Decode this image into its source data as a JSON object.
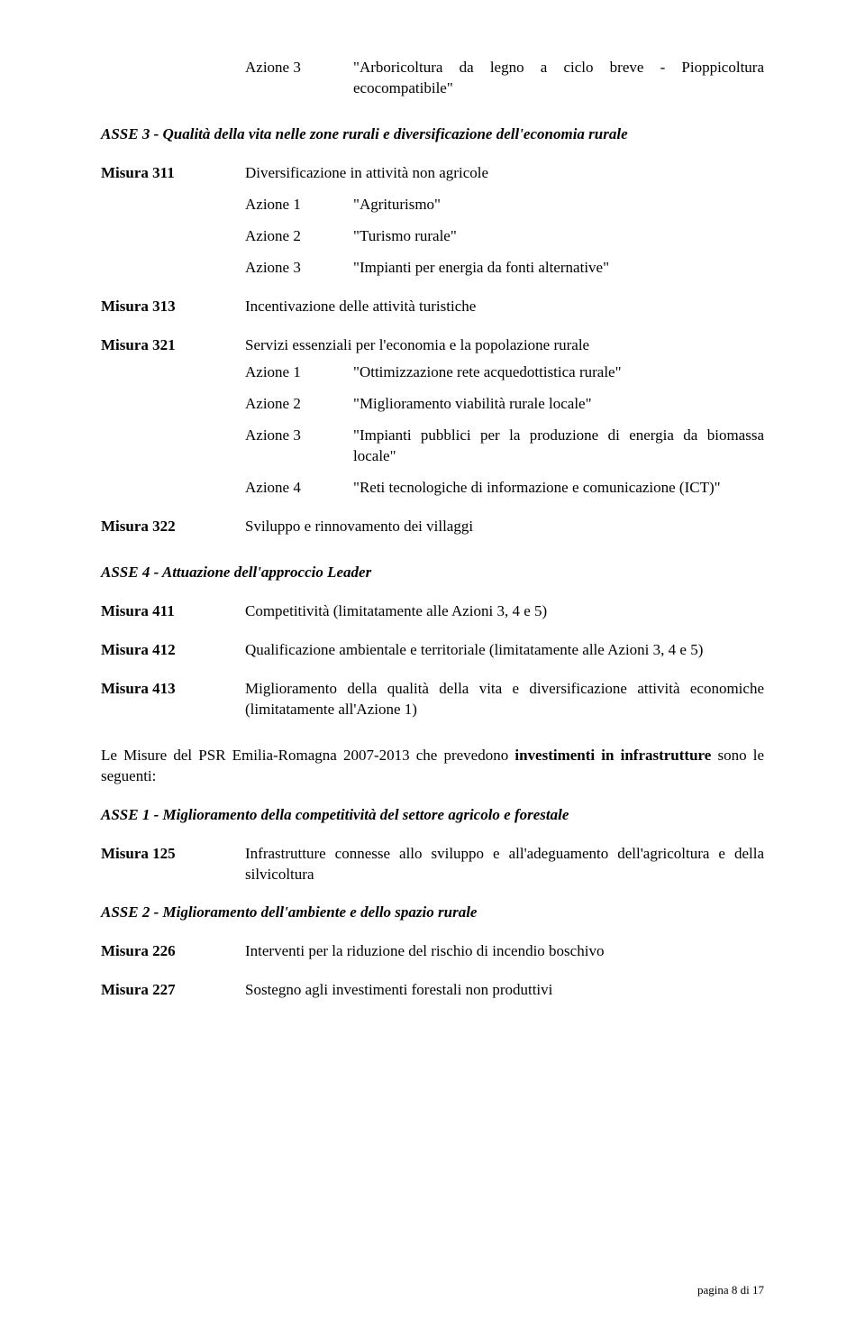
{
  "top": {
    "azione3_label": "Azione 3",
    "azione3_text": "\"Arboricoltura da legno a ciclo breve - Pioppicoltura ecocompatibile\""
  },
  "asse3_heading": "ASSE 3 - Qualità della vita nelle zone rurali e diversificazione dell'economia rurale",
  "m311": {
    "label": "Misura 311",
    "title": "Diversificazione in attività non agricole",
    "a1_label": "Azione 1",
    "a1_text": "\"Agriturismo\"",
    "a2_label": "Azione 2",
    "a2_text": "\"Turismo rurale\"",
    "a3_label": "Azione 3",
    "a3_text": "\"Impianti per energia da fonti alternative\""
  },
  "m313": {
    "label": "Misura 313",
    "title": "Incentivazione delle attività turistiche"
  },
  "m321": {
    "label": "Misura 321",
    "title": "Servizi essenziali per l'economia e la popolazione rurale",
    "a1_label": "Azione 1",
    "a1_text": "\"Ottimizzazione rete acquedottistica rurale\"",
    "a2_label": "Azione 2",
    "a2_text": "\"Miglioramento viabilità rurale locale\"",
    "a3_label": "Azione 3",
    "a3_text": "\"Impianti pubblici per la produzione di energia da biomassa locale\"",
    "a4_label": "Azione 4",
    "a4_text": "\"Reti tecnologiche di informazione e comunicazione (ICT)\""
  },
  "m322": {
    "label": "Misura 322",
    "title": "Sviluppo e rinnovamento dei villaggi"
  },
  "asse4_heading": "ASSE 4 - Attuazione dell'approccio Leader",
  "m411": {
    "label": "Misura 411",
    "title": "Competitività (limitatamente alle Azioni 3, 4 e 5)"
  },
  "m412": {
    "label": "Misura 412",
    "title": "Qualificazione ambientale e territoriale (limitatamente alle Azioni 3, 4 e 5)"
  },
  "m413": {
    "label": "Misura 413",
    "title": "Miglioramento della qualità della vita e diversificazione attività economiche (limitatamente all'Azione 1)"
  },
  "para_invest": "Le Misure del PSR Emilia-Romagna 2007-2013 che prevedono investimenti in infrastrutture sono le seguenti:",
  "para_invest_pre": "Le Misure del PSR Emilia-Romagna 2007-2013 che prevedono ",
  "para_invest_bold": "investimenti in infrastrutture",
  "para_invest_post": " sono le seguenti:",
  "asse1_heading": "ASSE 1 - Miglioramento della competitività del settore agricolo e forestale",
  "m125": {
    "label": "Misura 125",
    "title": "Infrastrutture connesse allo sviluppo e all'adeguamento dell'agricoltura e della silvicoltura"
  },
  "asse2_heading": "ASSE 2 - Miglioramento dell'ambiente e dello spazio rurale",
  "m226": {
    "label": "Misura 226",
    "title": "Interventi per la riduzione del rischio di incendio boschivo"
  },
  "m227": {
    "label": "Misura 227",
    "title": "Sostegno agli investimenti forestali non produttivi"
  },
  "footer": "pagina 8 di 17"
}
